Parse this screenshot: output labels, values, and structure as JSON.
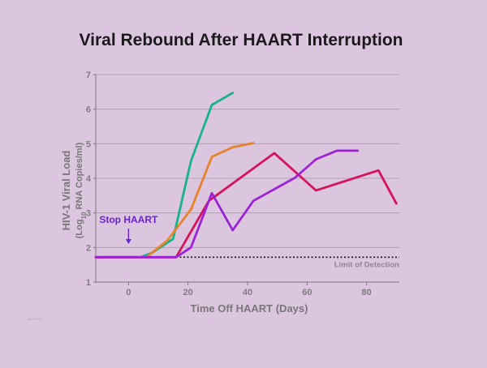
{
  "chart_data": {
    "type": "line",
    "title": "Viral Rebound After HAART Interruption",
    "xlabel": "Time Off HAART (Days)",
    "ylabel": "HIV-1 Viral Load",
    "ylabel_sub": "(Log10 RNA Copies/ml)",
    "xlim": [
      -11,
      91
    ],
    "ylim": [
      1,
      7
    ],
    "x_ticks": [
      0,
      20,
      40,
      60,
      80
    ],
    "y_ticks": [
      1,
      2,
      3,
      4,
      5,
      6,
      7
    ],
    "grid": "horizontal",
    "series": [
      {
        "color": "#16b28a",
        "points": [
          [
            -11,
            1.72
          ],
          [
            4,
            1.72
          ],
          [
            8,
            1.85
          ],
          [
            15,
            2.25
          ],
          [
            21,
            4.5
          ],
          [
            28,
            6.12
          ],
          [
            35,
            6.47
          ]
        ]
      },
      {
        "color": "#e8832a",
        "points": [
          [
            -11,
            1.72
          ],
          [
            6,
            1.72
          ],
          [
            13,
            2.2
          ],
          [
            21,
            3.1
          ],
          [
            28,
            4.62
          ],
          [
            35,
            4.9
          ],
          [
            42,
            5.02
          ]
        ]
      },
      {
        "color": "#d6135a",
        "points": [
          [
            -11,
            1.72
          ],
          [
            16,
            1.72
          ],
          [
            27,
            3.35
          ],
          [
            49,
            4.73
          ],
          [
            63,
            3.65
          ],
          [
            84,
            4.23
          ],
          [
            90,
            3.27
          ]
        ]
      },
      {
        "color": "#9b22d8",
        "points": [
          [
            -11,
            1.72
          ],
          [
            16,
            1.72
          ],
          [
            21,
            2.0
          ],
          [
            28,
            3.57
          ],
          [
            35,
            2.5
          ],
          [
            42,
            3.35
          ],
          [
            56,
            4.02
          ],
          [
            63,
            4.55
          ],
          [
            70,
            4.8
          ],
          [
            77,
            4.8
          ]
        ]
      }
    ],
    "reference_line": {
      "y": 1.72,
      "label": "Limit of Detection",
      "style": "dotted"
    },
    "annotations": [
      {
        "text": "Stop HAART",
        "x": 0,
        "color": "#6a22d6",
        "arrow": true
      }
    ]
  },
  "credit": "ACTG5Y5"
}
